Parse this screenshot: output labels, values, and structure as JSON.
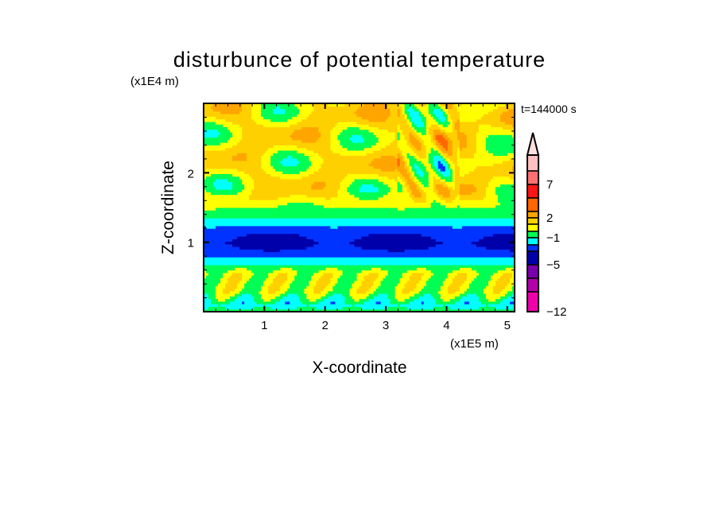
{
  "chart_data": {
    "type": "heatmap",
    "subtype": "filled-contour",
    "title": "disturbunce of potential temperature",
    "xlabel": "X-coordinate",
    "ylabel": "Z-coordinate",
    "x_unit_label": "(x1E5 m)",
    "y_unit_label": "(x1E4 m)",
    "time_label": "t=144000 s",
    "xlim": [
      0,
      5.12
    ],
    "ylim": [
      0,
      3.0
    ],
    "x_ticks": [
      1,
      2,
      3,
      4,
      5
    ],
    "y_ticks": [
      1,
      2
    ],
    "x_minor_step": 0.2,
    "y_minor_step": 0.2,
    "colorbar": {
      "levels": [
        15,
        10,
        7,
        5,
        3,
        2,
        1,
        0,
        -1,
        -2,
        -3,
        -5,
        -7,
        -9,
        -12
      ],
      "labels": [
        7,
        2,
        -1,
        -5,
        -12
      ],
      "extend": "max",
      "over_color": "#ffe0e0",
      "colors": [
        "#ffc0c0",
        "#ff7070",
        "#ff1515",
        "#ff6600",
        "#ffa500",
        "#ffd000",
        "#ffff00",
        "#00ff55",
        "#00ffff",
        "#0033ff",
        "#0000aa",
        "#7700aa",
        "#b300aa",
        "#ee00aa"
      ]
    },
    "features": [
      "low layer (z<0.8) mostly green/yellow/cyan",
      "blue to navy band around z 0.8-1.3",
      "upper layer (z>1.5) yellow with orange and green wave patches"
    ]
  }
}
